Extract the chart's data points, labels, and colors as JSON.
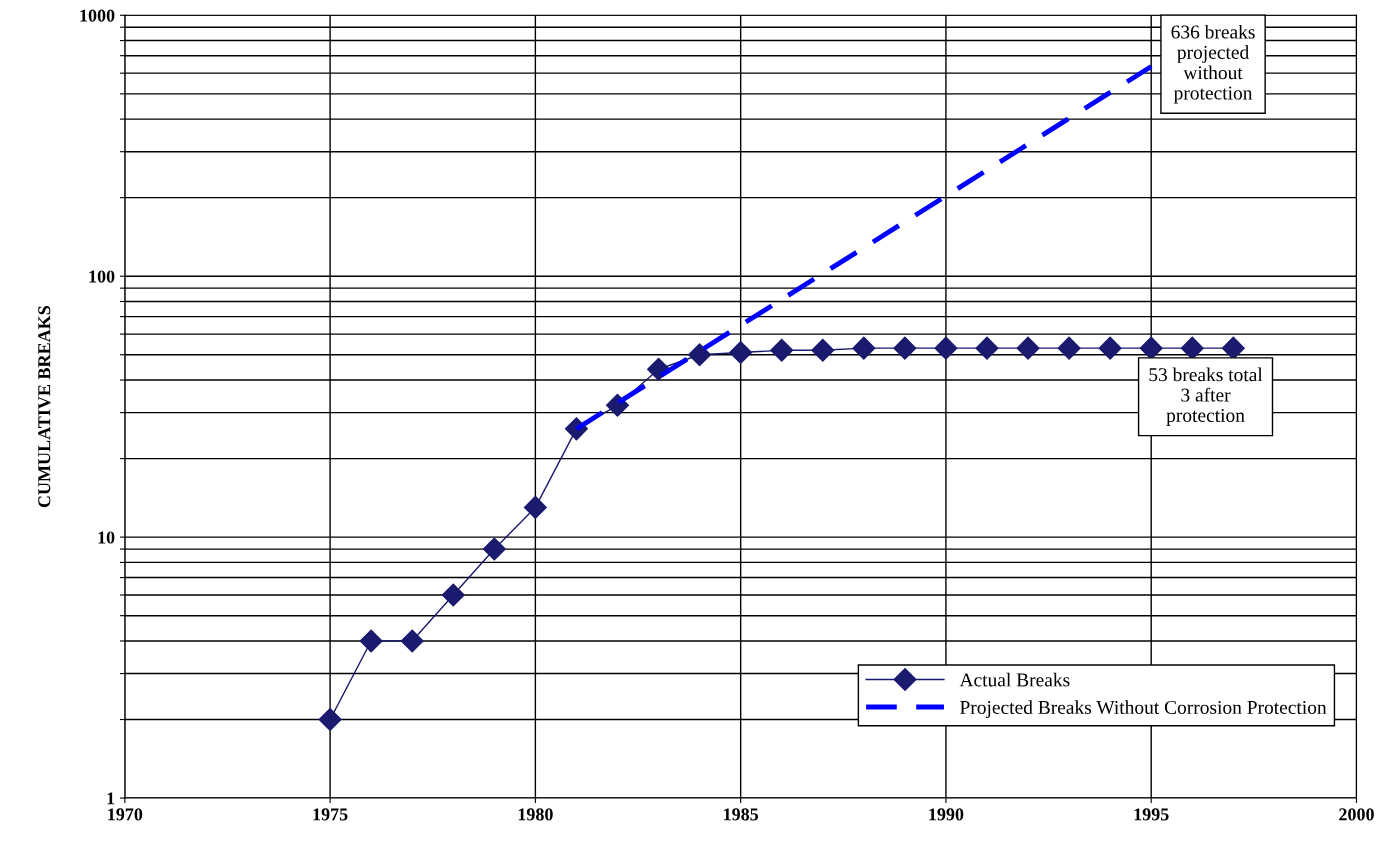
{
  "chart_data": {
    "type": "line",
    "ylabel": "CUMULATIVE BREAKS",
    "log": "y",
    "grid": true,
    "legend": "bottom right",
    "xlim": [
      1970,
      2000
    ],
    "xticks": [
      1970,
      1975,
      1980,
      1985,
      1990,
      1995,
      2000
    ],
    "ylim": [
      1,
      1000
    ],
    "yticks": [
      1,
      {
        "value": 2,
        "label": null
      },
      {
        "value": 3,
        "label": null
      },
      {
        "value": 4,
        "label": null
      },
      {
        "value": 5,
        "label": null
      },
      {
        "value": 6,
        "label": null
      },
      {
        "value": 7,
        "label": null
      },
      {
        "value": 8,
        "label": null
      },
      {
        "value": 9,
        "label": null
      },
      10,
      {
        "value": 20,
        "label": null
      },
      {
        "value": 30,
        "label": null
      },
      {
        "value": 40,
        "label": null
      },
      {
        "value": 50,
        "label": null
      },
      {
        "value": 60,
        "label": null
      },
      {
        "value": 70,
        "label": null
      },
      {
        "value": 80,
        "label": null
      },
      {
        "value": 90,
        "label": null
      },
      100,
      {
        "value": 200,
        "label": null
      },
      {
        "value": 300,
        "label": null
      },
      {
        "value": 400,
        "label": null
      },
      {
        "value": 500,
        "label": null
      },
      {
        "value": 600,
        "label": null
      },
      {
        "value": 700,
        "label": null
      },
      {
        "value": 800,
        "label": null
      },
      {
        "value": 900,
        "label": null
      },
      1000
    ],
    "series": [
      {
        "name": "Actual Breaks",
        "color": "#1a1a6e",
        "marker": "diamond",
        "line_style": "solid",
        "x": [
          1975,
          1976,
          1977,
          1978,
          1979,
          1980,
          1981,
          1982,
          1983,
          1984,
          1985,
          1986,
          1987,
          1988,
          1989,
          1990,
          1991,
          1992,
          1993,
          1994,
          1995,
          1996,
          1997
        ],
        "values": [
          2,
          4,
          4,
          6,
          9,
          13,
          26,
          32,
          44,
          50,
          51,
          52,
          52,
          53,
          53,
          53,
          53,
          53,
          53,
          53,
          53,
          53,
          53
        ]
      },
      {
        "name": "Projected Breaks Without Corrosion Protection",
        "color": "#0000ff",
        "marker": "none",
        "line_style": "dashed",
        "x": [
          1981,
          1995
        ],
        "values": [
          26,
          636
        ]
      }
    ],
    "annotations": [
      {
        "text": "636 breaks\nprojected\nwithout\nprotection",
        "x": 1995,
        "y": 636
      },
      {
        "text": "53 breaks total\n3 after\nprotection",
        "x": 1997,
        "y": 53
      }
    ]
  }
}
